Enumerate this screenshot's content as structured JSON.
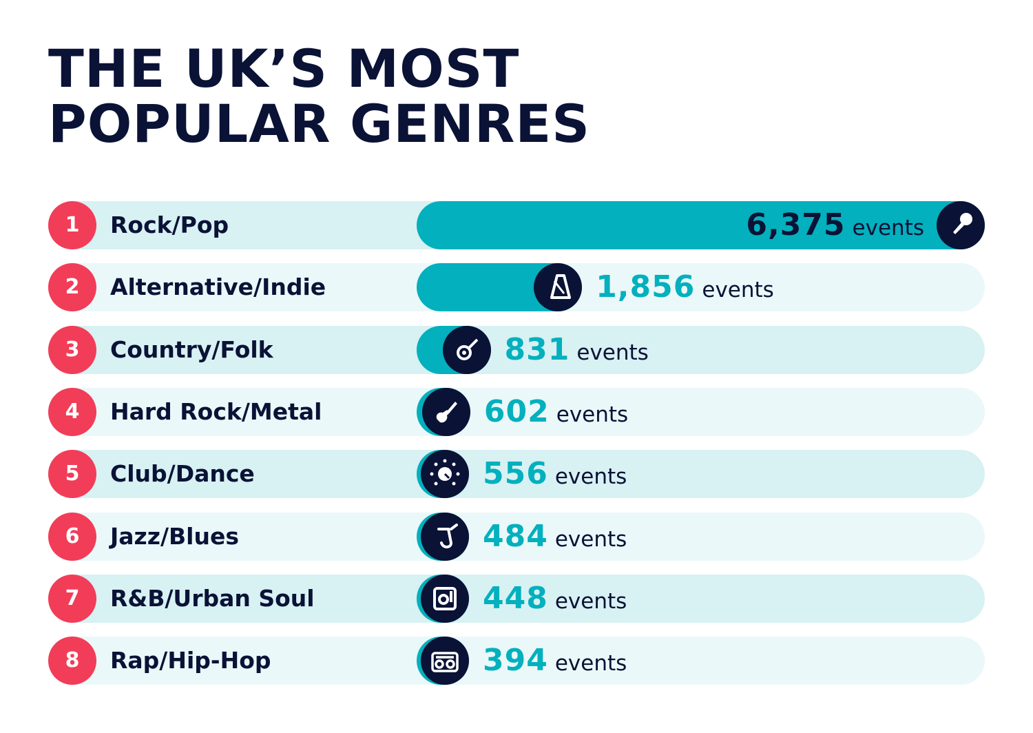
{
  "title": {
    "line1": "THE UK’S MOST",
    "line2": "POPULAR GENRES"
  },
  "colors": {
    "navy": "#0a1236",
    "teal": "#03b0bd",
    "rank_red": "#f23d58",
    "row_bg_a": "#d8f1f3",
    "row_bg_b": "#eaf8f9"
  },
  "unit_label": "events",
  "chart_data": {
    "type": "bar",
    "orientation": "horizontal",
    "title": "THE UK’S MOST POPULAR GENRES",
    "categories": [
      "Rock/Pop",
      "Alternative/Indie",
      "Country/Folk",
      "Hard Rock/Metal",
      "Club/Dance",
      "Jazz/Blues",
      "R&B/Urban Soul",
      "Rap/Hip-Hop"
    ],
    "ranks": [
      "1",
      "2",
      "3",
      "4",
      "5",
      "6",
      "7",
      "8"
    ],
    "values": [
      6375,
      1856,
      831,
      602,
      556,
      484,
      448,
      394
    ],
    "value_labels": [
      "6,375",
      "1,856",
      "831",
      "602",
      "556",
      "484",
      "448",
      "394"
    ],
    "icons": [
      "microphone-icon",
      "metronome-icon",
      "banjo-icon",
      "electric-guitar-icon",
      "dj-knob-icon",
      "saxophone-icon",
      "turntable-icon",
      "boombox-icon"
    ],
    "xlim": [
      0,
      6375
    ],
    "grid": false,
    "legend": "none"
  }
}
